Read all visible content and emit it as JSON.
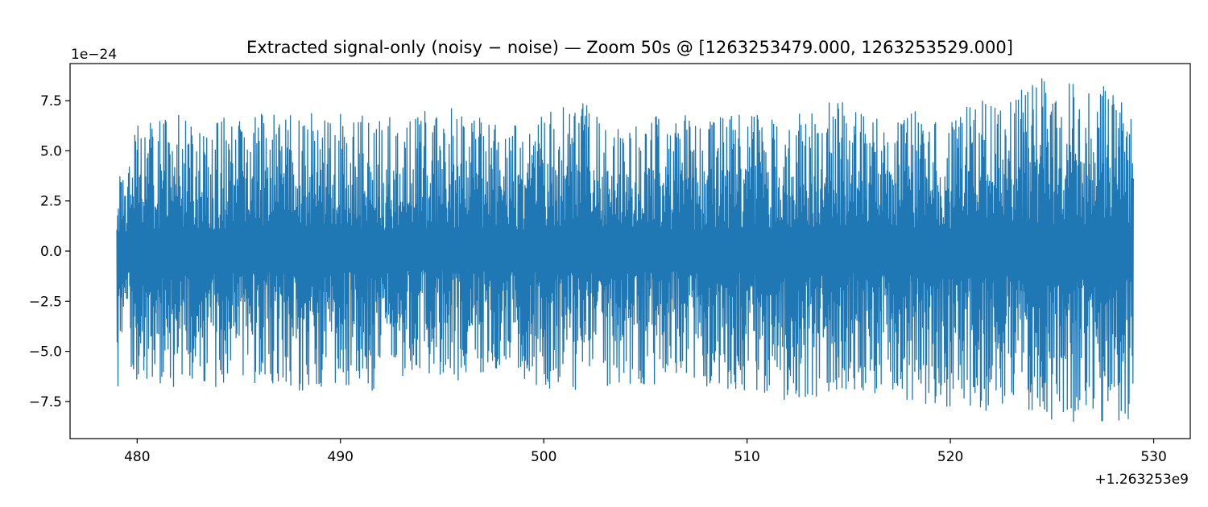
{
  "chart_data": {
    "type": "line",
    "title": "Extracted signal-only (noisy − noise) — Zoom 50s @ [1263253479.000, 1263253529.000]",
    "xlabel": "",
    "ylabel": "",
    "x_offset_label": "+1.263253e9",
    "y_scale_label": "1e−24",
    "xlim": [
      476.7,
      531.8
    ],
    "ylim": [
      -9.35,
      9.35
    ],
    "x_ticks": [
      480,
      490,
      500,
      510,
      520,
      530
    ],
    "x_tick_labels": [
      "480",
      "490",
      "500",
      "510",
      "520",
      "530"
    ],
    "y_ticks": [
      -7.5,
      -5.0,
      -2.5,
      0.0,
      2.5,
      5.0,
      7.5
    ],
    "y_tick_labels": [
      "−7.5",
      "−5.0",
      "−2.5",
      "0.0",
      "2.5",
      "5.0",
      "7.5"
    ],
    "grid": false,
    "series": [
      {
        "color": "#1f77b4",
        "x_range": [
          479.0,
          529.0
        ],
        "envelope_x": [
          479.0,
          480.0,
          482.0,
          484.0,
          486.0,
          488.0,
          490.0,
          492.0,
          494.0,
          496.0,
          498.0,
          500.0,
          502.0,
          504.0,
          506.0,
          508.0,
          510.0,
          512.0,
          514.0,
          516.0,
          518.0,
          520.0,
          522.0,
          524.0,
          526.0,
          528.0,
          529.0
        ],
        "envelope_max": [
          3.5,
          6.5,
          6.8,
          6.8,
          7.0,
          7.0,
          6.9,
          6.8,
          7.0,
          7.3,
          6.3,
          7.0,
          7.4,
          6.0,
          7.0,
          6.5,
          7.0,
          6.5,
          7.7,
          7.0,
          7.0,
          7.2,
          7.6,
          8.6,
          8.6,
          8.6,
          7.2
        ],
        "envelope_min": [
          -7.0,
          -6.5,
          -6.8,
          -6.8,
          -7.0,
          -7.0,
          -6.8,
          -7.0,
          -6.0,
          -6.5,
          -6.0,
          -6.9,
          -7.0,
          -7.0,
          -6.5,
          -6.9,
          -7.0,
          -7.5,
          -7.3,
          -7.0,
          -7.5,
          -8.0,
          -8.0,
          -8.4,
          -8.5,
          -8.5,
          -8.5
        ]
      }
    ]
  }
}
